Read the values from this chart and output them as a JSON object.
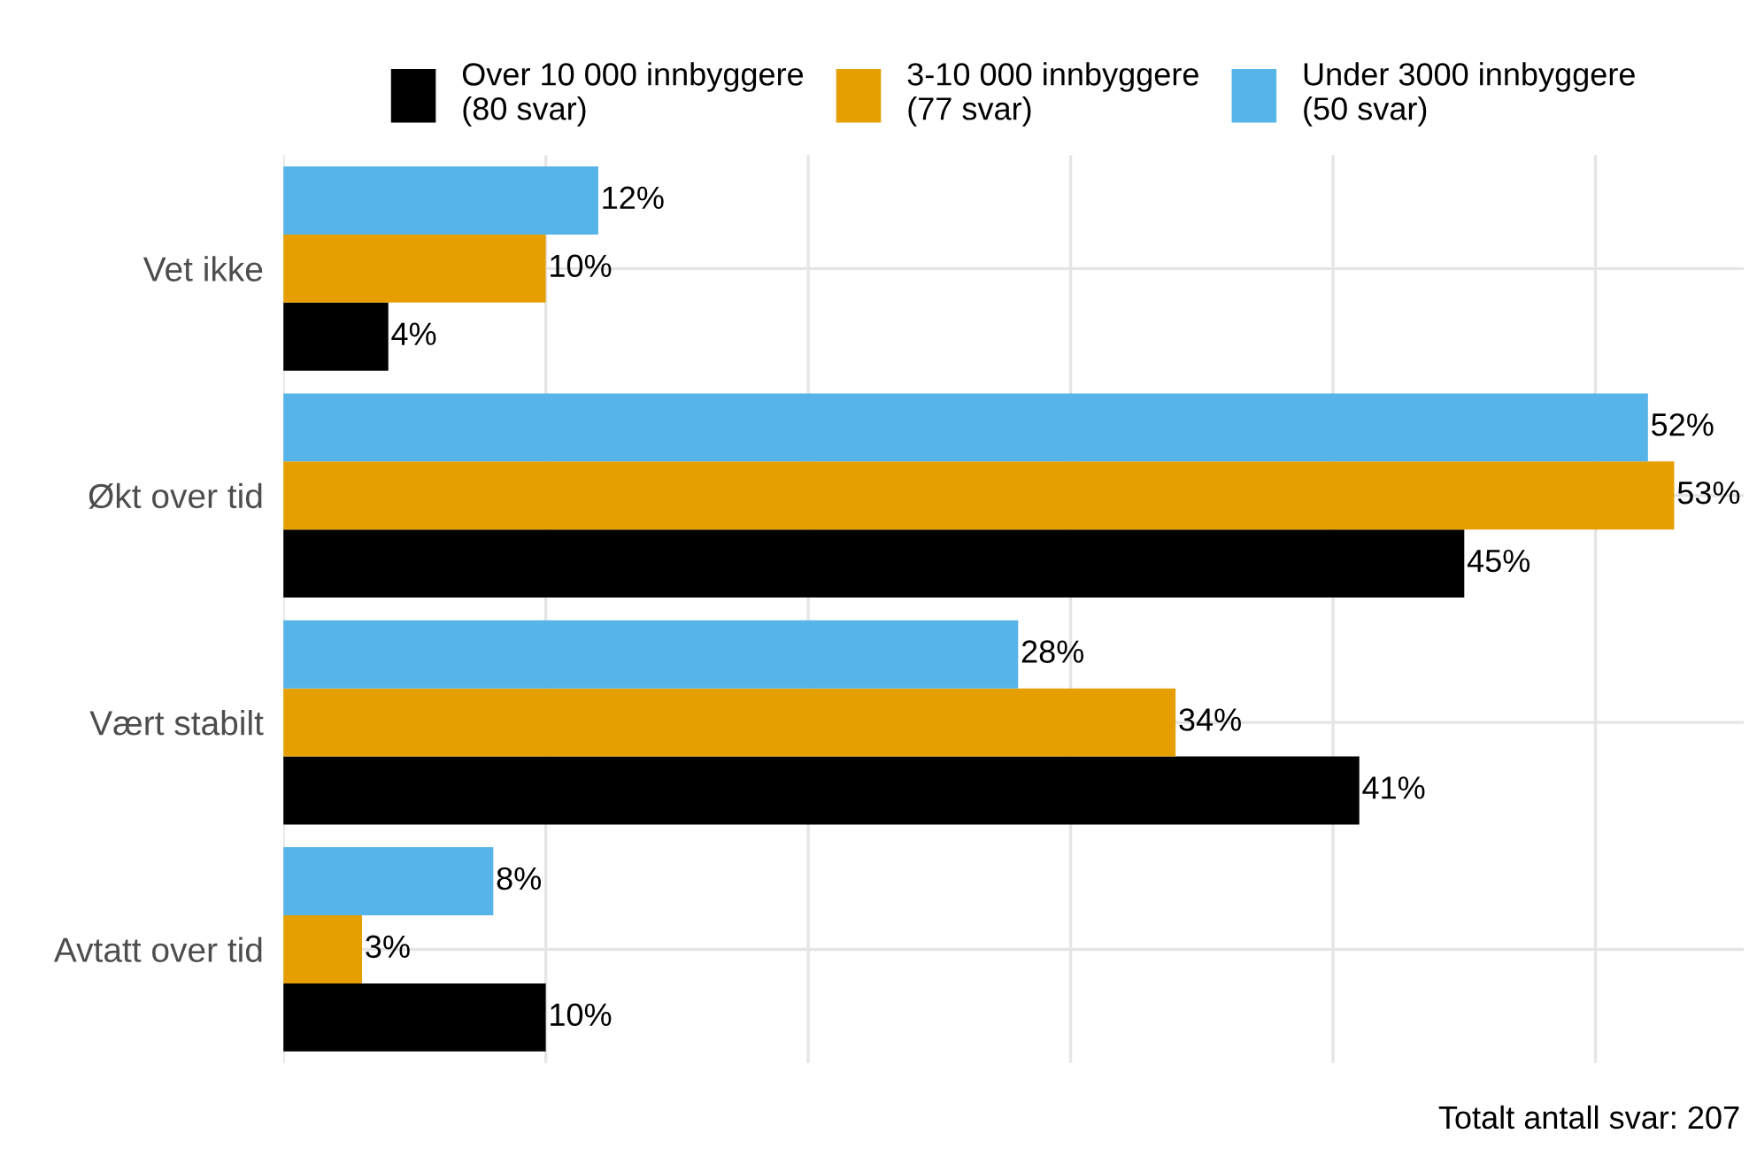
{
  "chart_data": {
    "type": "bar",
    "orientation": "horizontal",
    "categories": [
      "Vet ikke",
      "Økt over tid",
      "Vært stabilt",
      "Avtatt over tid"
    ],
    "series": [
      {
        "name": "Over 10 000 innbyggere\n(80 svar)",
        "color": "#000000",
        "values": [
          4,
          45,
          41,
          10
        ],
        "value_labels": [
          "4%",
          "45%",
          "41%",
          "10%"
        ]
      },
      {
        "name": "3-10 000 innbyggere\n(77 svar)",
        "color": "#e69f00",
        "values": [
          10,
          53,
          34,
          3
        ],
        "value_labels": [
          "10%",
          "53%",
          "34%",
          "3%"
        ]
      },
      {
        "name": "Under 3000 innbyggere\n(50 svar)",
        "color": "#56b4e9",
        "values": [
          12,
          52,
          28,
          8
        ],
        "value_labels": [
          "12%",
          "52%",
          "28%",
          "8%"
        ]
      }
    ],
    "tick_labels": "y",
    "grid": true,
    "legend": "top",
    "annotations": [
      "Totalt antall svar: 207"
    ]
  }
}
